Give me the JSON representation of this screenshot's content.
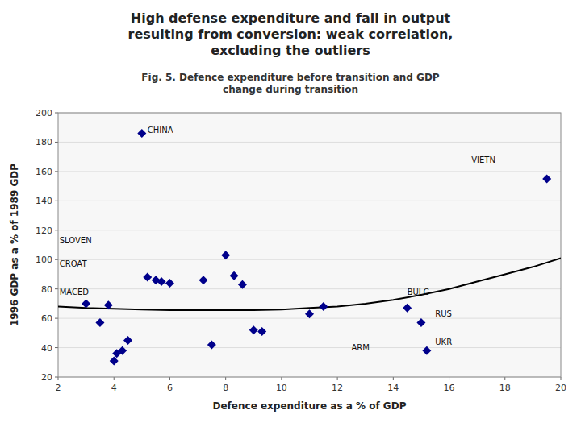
{
  "chart_data": {
    "type": "scatter",
    "title": "High defense expenditure and fall in output\nresulting from conversion: weak correlation,\nexcluding the outliers",
    "subtitle": "Fig. 5. Defence expenditure before transition and GDP\nchange during transition",
    "x_label": "Defence expenditure as a % of GDP",
    "y_label": "1996 GDP as a % of 1989 GDP",
    "xlim": [
      2,
      20
    ],
    "ylim": [
      20,
      200
    ],
    "xticks": [
      2,
      4,
      6,
      8,
      10,
      12,
      14,
      16,
      18,
      20
    ],
    "yticks": [
      20,
      40,
      60,
      80,
      100,
      120,
      140,
      160,
      180,
      200
    ],
    "grid": true,
    "series": [
      {
        "type": "scatter",
        "color": "#00008B",
        "marker": "diamond",
        "x": [
          3.0,
          3.5,
          3.8,
          4.0,
          4.1,
          4.3,
          4.5,
          5.0,
          5.2,
          5.5,
          5.7,
          6.0,
          7.2,
          7.5,
          8.0,
          8.3,
          8.6,
          9.0,
          9.3,
          11.0,
          11.5,
          14.5,
          15.0,
          15.2,
          19.5
        ],
        "values": [
          70,
          57,
          69,
          31,
          36,
          38,
          45,
          186,
          88,
          86,
          85,
          84,
          86,
          42,
          103,
          89,
          83,
          52,
          51,
          63,
          68,
          67,
          57,
          38,
          155
        ]
      },
      {
        "type": "line",
        "color": "#000000",
        "x": [
          2,
          3,
          4,
          5,
          6,
          7,
          8,
          9,
          10,
          11,
          12,
          13,
          14,
          15,
          16,
          17,
          18,
          19,
          20
        ],
        "values": [
          68,
          67,
          66.5,
          66,
          65.5,
          65.5,
          65.5,
          65.5,
          66,
          67,
          68,
          70,
          72.5,
          76,
          80,
          85,
          90,
          95,
          101
        ]
      }
    ],
    "annotations": [
      {
        "text": "CHINA",
        "x": 5.2,
        "y": 188
      },
      {
        "text": "VIETN",
        "x": 16.8,
        "y": 168
      },
      {
        "text": "SLOVEN",
        "x": 2.05,
        "y": 113
      },
      {
        "text": "CROAT",
        "x": 2.05,
        "y": 97
      },
      {
        "text": "MACED",
        "x": 2.05,
        "y": 78
      },
      {
        "text": "BULG",
        "x": 14.5,
        "y": 78
      },
      {
        "text": "RUS",
        "x": 15.5,
        "y": 63
      },
      {
        "text": "UKR",
        "x": 15.5,
        "y": 44
      },
      {
        "text": "ARM",
        "x": 12.5,
        "y": 40
      }
    ]
  }
}
